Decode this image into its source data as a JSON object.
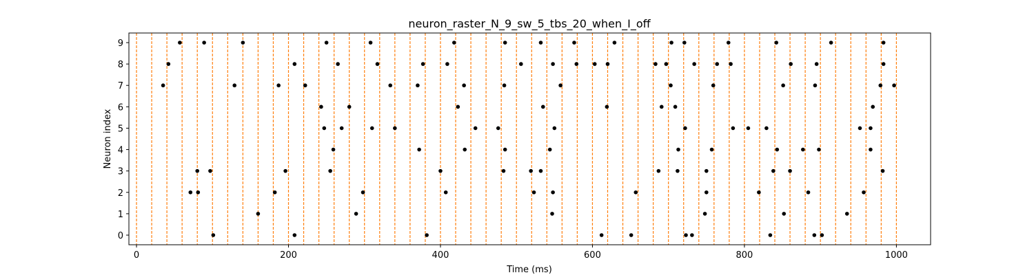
{
  "chart_data": {
    "type": "scatter",
    "title": "neuron_raster_N_9_sw_5_tbs_20_when_I_off",
    "xlabel": "Time (ms)",
    "ylabel": "Neuron index",
    "xlim": [
      -10,
      1045
    ],
    "ylim": [
      -0.45,
      9.45
    ],
    "x_ticks": [
      0,
      200,
      400,
      600,
      800,
      1000
    ],
    "y_ticks": [
      0,
      1,
      2,
      3,
      4,
      5,
      6,
      7,
      8,
      9
    ],
    "grid": false,
    "legend": "none",
    "colors": {
      "spikes": "#000000",
      "time_bins": "#ff7f0e"
    },
    "time_bin_lines": {
      "style": "dashed",
      "x": [
        0,
        20,
        40,
        60,
        80,
        100,
        120,
        140,
        160,
        180,
        200,
        220,
        240,
        260,
        280,
        300,
        320,
        340,
        360,
        380,
        400,
        420,
        440,
        460,
        480,
        500,
        520,
        540,
        560,
        580,
        600,
        620,
        640,
        660,
        680,
        700,
        720,
        740,
        760,
        780,
        800,
        820,
        840,
        860,
        880,
        900,
        920,
        940,
        960,
        980,
        1000
      ]
    },
    "series": [
      {
        "neuron": 9,
        "x": [
          57,
          89,
          140,
          250,
          308,
          418,
          485,
          532,
          576,
          629,
          704,
          721,
          779,
          842,
          914,
          983
        ]
      },
      {
        "neuron": 8,
        "x": [
          42,
          208,
          265,
          317,
          377,
          409,
          506,
          548,
          579,
          603,
          620,
          683,
          697,
          734,
          764,
          782,
          861,
          895,
          983
        ]
      },
      {
        "neuron": 7,
        "x": [
          35,
          129,
          187,
          222,
          334,
          370,
          431,
          484,
          558,
          703,
          759,
          851,
          893,
          979,
          997
        ]
      },
      {
        "neuron": 6,
        "x": [
          243,
          280,
          423,
          535,
          619,
          691,
          709,
          969
        ]
      },
      {
        "neuron": 5,
        "x": [
          247,
          270,
          310,
          340,
          446,
          476,
          550,
          722,
          785,
          805,
          829,
          952,
          966
        ]
      },
      {
        "neuron": 4,
        "x": [
          259,
          372,
          432,
          485,
          544,
          713,
          757,
          843,
          877,
          898,
          966
        ]
      },
      {
        "neuron": 3,
        "x": [
          80,
          97,
          196,
          255,
          400,
          483,
          519,
          532,
          687,
          712,
          750,
          838,
          860,
          982
        ]
      },
      {
        "neuron": 2,
        "x": [
          71,
          81,
          182,
          298,
          407,
          523,
          548,
          657,
          750,
          819,
          884,
          957
        ]
      },
      {
        "neuron": 1,
        "x": [
          160,
          289,
          547,
          748,
          852,
          935
        ]
      },
      {
        "neuron": 0,
        "x": [
          101,
          208,
          382,
          612,
          651,
          723,
          731,
          834,
          892,
          902
        ]
      }
    ]
  }
}
